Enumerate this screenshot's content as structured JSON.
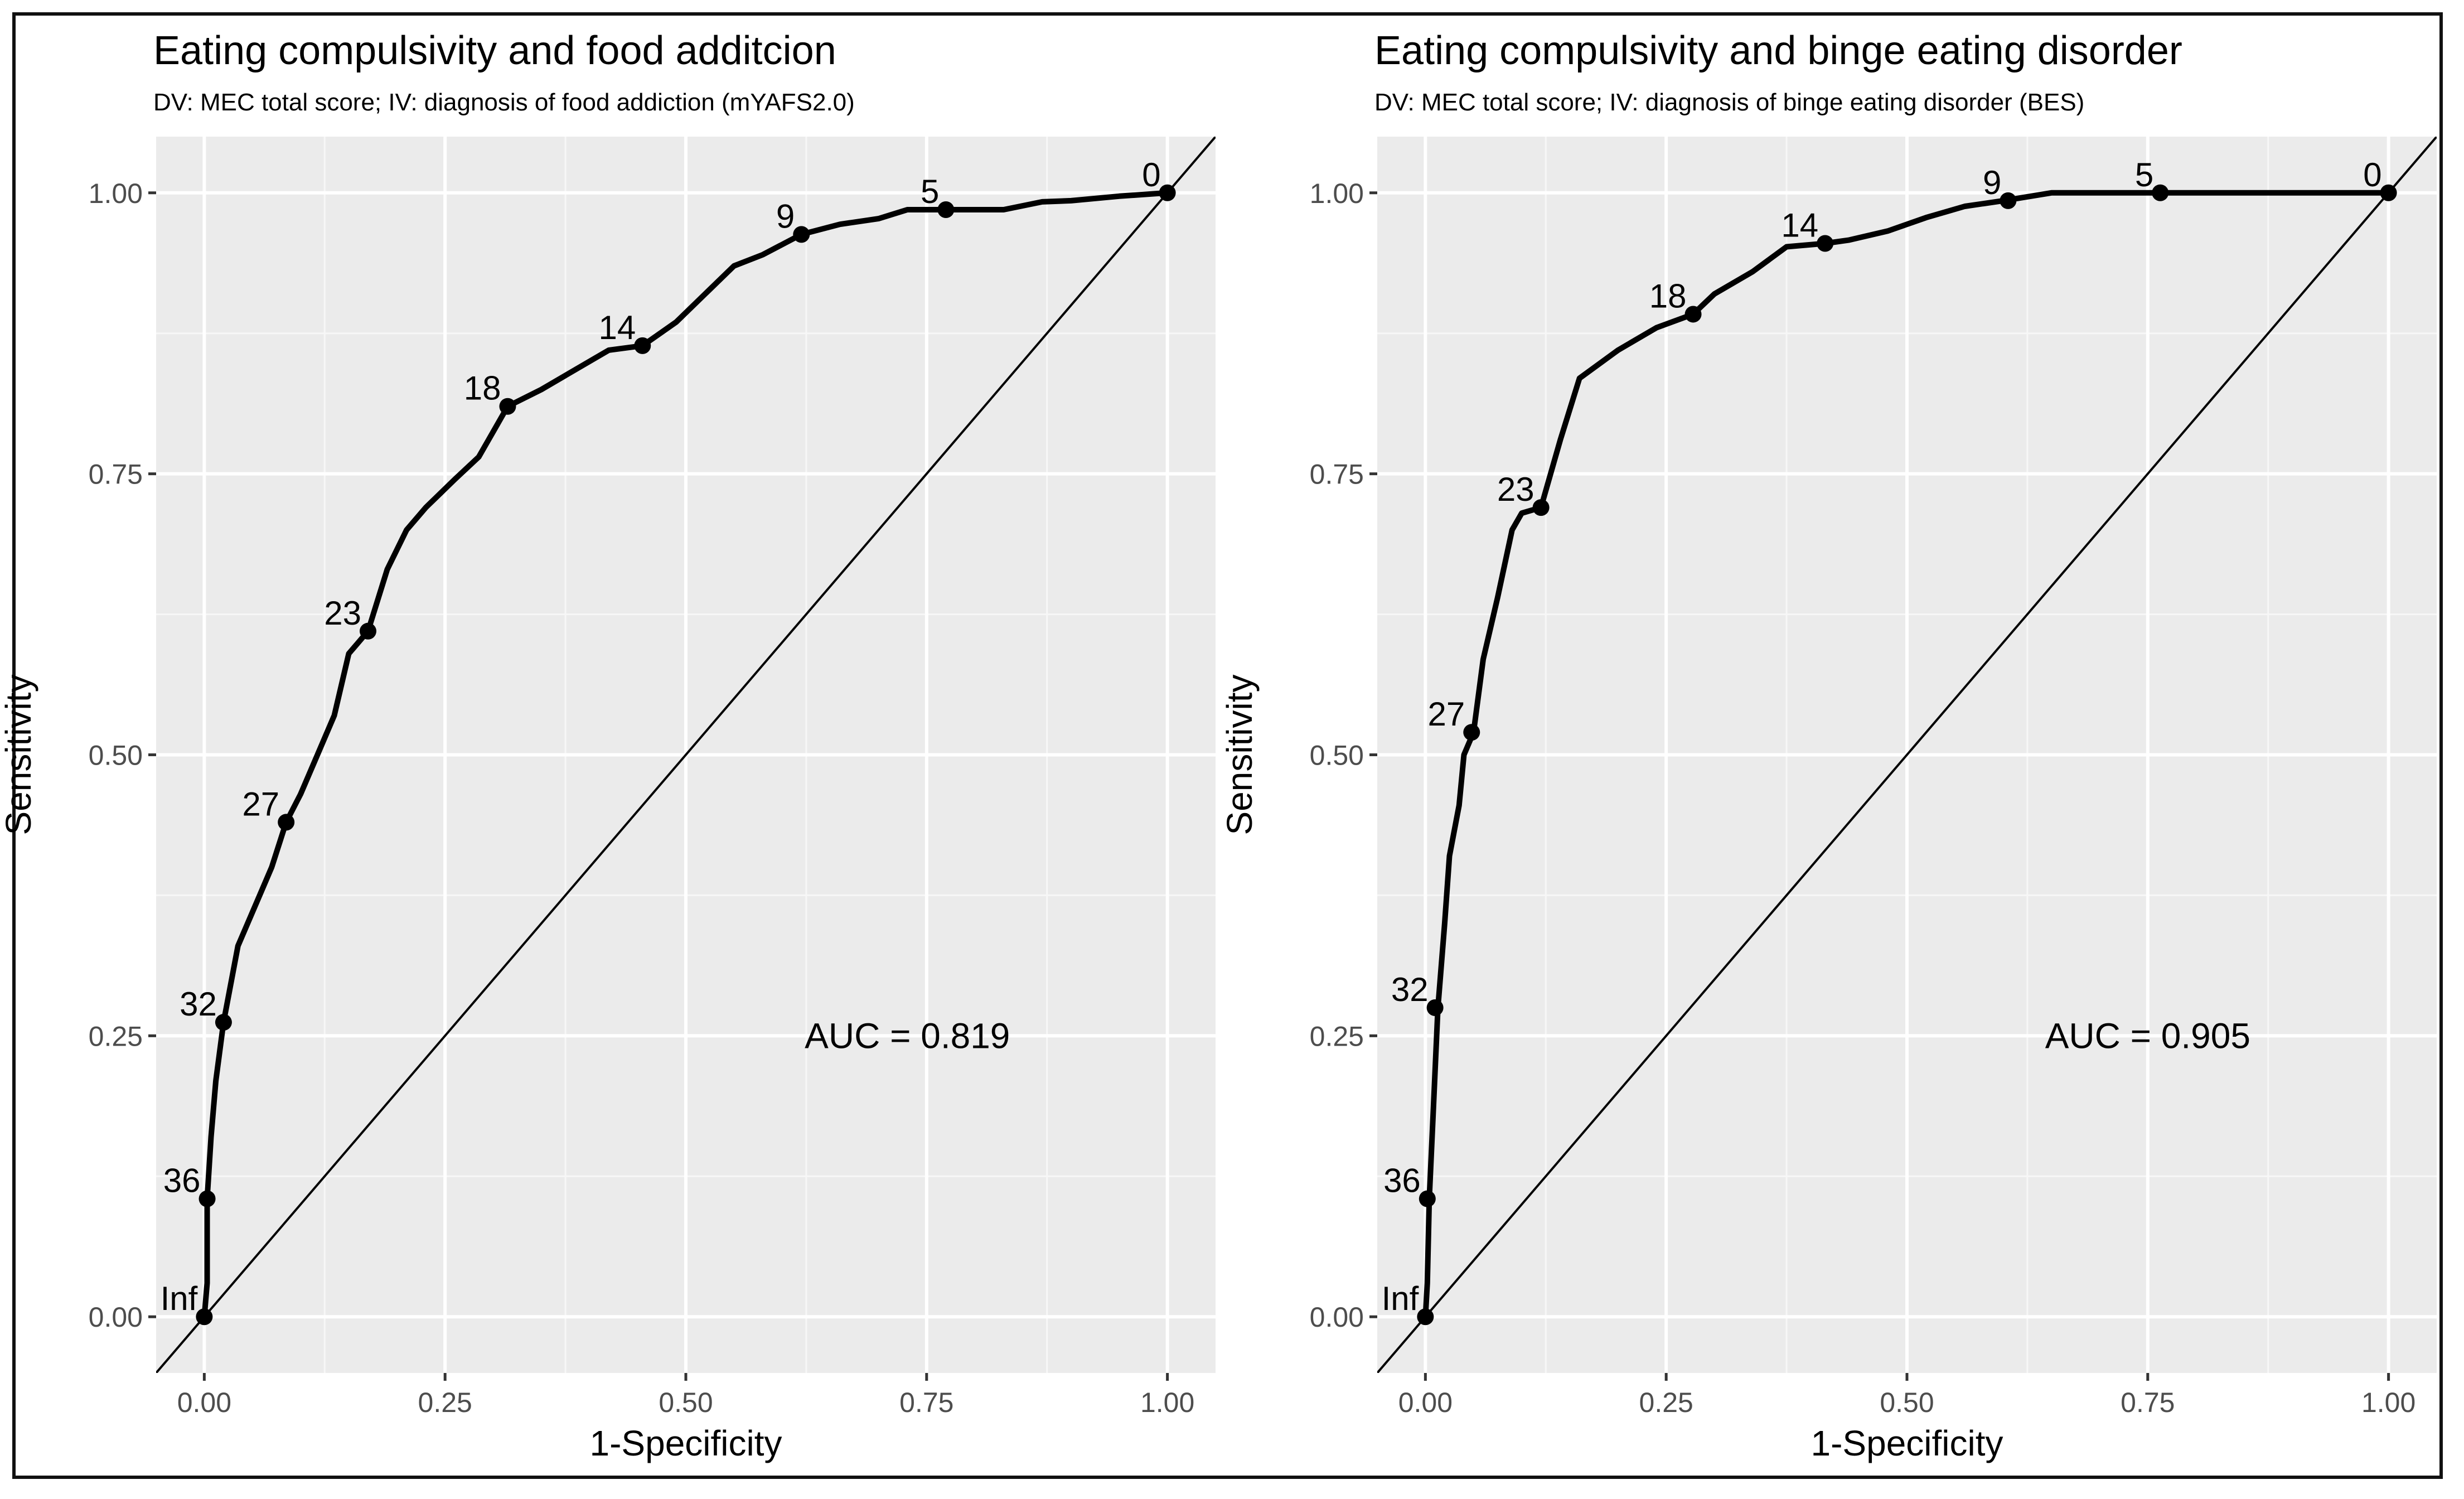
{
  "chart_data": [
    {
      "type": "line",
      "title": "Eating compulsivity and food additcion",
      "subtitle": "DV: MEC total score; IV: diagnosis of food addiction (mYAFS2.0)",
      "xlabel": "1-Specificity",
      "ylabel": "Sensitivity",
      "xlim": [
        -0.05,
        1.05
      ],
      "ylim": [
        -0.05,
        1.05
      ],
      "xticks": [
        0,
        0.25,
        0.5,
        0.75,
        1
      ],
      "xtick_labels": [
        "0.00",
        "0.25",
        "0.50",
        "0.75",
        "1.00"
      ],
      "yticks": [
        0,
        0.25,
        0.5,
        0.75,
        1
      ],
      "ytick_labels": [
        "0.00",
        "0.25",
        "0.50",
        "0.75",
        "1.00"
      ],
      "grid": true,
      "diagonal": true,
      "auc_text": "AUC = 0.819",
      "auc_position": [
        0.73,
        0.25
      ],
      "curve": {
        "x": [
          0,
          0.003,
          0.003,
          0.007,
          0.012,
          0.02,
          0.035,
          0.055,
          0.07,
          0.085,
          0.1,
          0.115,
          0.135,
          0.15,
          0.17,
          0.19,
          0.21,
          0.23,
          0.26,
          0.285,
          0.295,
          0.315,
          0.35,
          0.38,
          0.42,
          0.455,
          0.49,
          0.52,
          0.55,
          0.58,
          0.62,
          0.66,
          0.7,
          0.73,
          0.77,
          0.83,
          0.87,
          0.9,
          0.95,
          1.0
        ],
        "y": [
          0,
          0.03,
          0.105,
          0.16,
          0.21,
          0.262,
          0.33,
          0.37,
          0.4,
          0.44,
          0.465,
          0.495,
          0.535,
          0.59,
          0.61,
          0.665,
          0.7,
          0.72,
          0.745,
          0.765,
          0.78,
          0.81,
          0.825,
          0.84,
          0.86,
          0.864,
          0.885,
          0.91,
          0.935,
          0.945,
          0.963,
          0.972,
          0.977,
          0.985,
          0.985,
          0.985,
          0.992,
          0.993,
          0.997,
          1.0
        ]
      },
      "points": [
        {
          "label": "Inf",
          "x": 0,
          "y": 0
        },
        {
          "label": "36",
          "x": 0.003,
          "y": 0.105
        },
        {
          "label": "32",
          "x": 0.02,
          "y": 0.262
        },
        {
          "label": "27",
          "x": 0.085,
          "y": 0.44
        },
        {
          "label": "23",
          "x": 0.17,
          "y": 0.61
        },
        {
          "label": "18",
          "x": 0.315,
          "y": 0.81
        },
        {
          "label": "14",
          "x": 0.455,
          "y": 0.864
        },
        {
          "label": "9",
          "x": 0.62,
          "y": 0.963
        },
        {
          "label": "5",
          "x": 0.77,
          "y": 0.985
        },
        {
          "label": "0",
          "x": 1.0,
          "y": 1.0
        }
      ]
    },
    {
      "type": "line",
      "title": "Eating compulsivity and binge eating disorder",
      "subtitle": "DV: MEC total score; IV: diagnosis of binge eating disorder (BES)",
      "xlabel": "1-Specificity",
      "ylabel": "Sensitivity",
      "xlim": [
        -0.05,
        1.05
      ],
      "ylim": [
        -0.05,
        1.05
      ],
      "xticks": [
        0,
        0.25,
        0.5,
        0.75,
        1
      ],
      "xtick_labels": [
        "0.00",
        "0.25",
        "0.50",
        "0.75",
        "1.00"
      ],
      "yticks": [
        0,
        0.25,
        0.5,
        0.75,
        1
      ],
      "ytick_labels": [
        "0.00",
        "0.25",
        "0.50",
        "0.75",
        "1.00"
      ],
      "grid": true,
      "diagonal": true,
      "auc_text": "AUC = 0.905",
      "auc_position": [
        0.75,
        0.25
      ],
      "curve": {
        "x": [
          0,
          0.002,
          0.004,
          0.008,
          0.013,
          0.02,
          0.025,
          0.035,
          0.04,
          0.05,
          0.06,
          0.075,
          0.09,
          0.1,
          0.12,
          0.14,
          0.16,
          0.2,
          0.24,
          0.278,
          0.3,
          0.34,
          0.375,
          0.415,
          0.44,
          0.48,
          0.52,
          0.56,
          0.6,
          0.65,
          0.7,
          0.763,
          0.85,
          1.0
        ],
        "y": [
          0,
          0.03,
          0.105,
          0.18,
          0.275,
          0.35,
          0.41,
          0.455,
          0.5,
          0.52,
          0.585,
          0.64,
          0.7,
          0.715,
          0.72,
          0.78,
          0.835,
          0.86,
          0.88,
          0.892,
          0.91,
          0.93,
          0.952,
          0.955,
          0.958,
          0.966,
          0.978,
          0.988,
          0.993,
          1.0,
          1.0,
          1.0,
          1.0,
          1.0
        ]
      },
      "points": [
        {
          "label": "Inf",
          "x": 0,
          "y": 0
        },
        {
          "label": "36",
          "x": 0.002,
          "y": 0.105
        },
        {
          "label": "32",
          "x": 0.01,
          "y": 0.275
        },
        {
          "label": "27",
          "x": 0.048,
          "y": 0.52
        },
        {
          "label": "23",
          "x": 0.12,
          "y": 0.72
        },
        {
          "label": "18",
          "x": 0.278,
          "y": 0.892
        },
        {
          "label": "14",
          "x": 0.415,
          "y": 0.955
        },
        {
          "label": "9",
          "x": 0.605,
          "y": 0.993
        },
        {
          "label": "5",
          "x": 0.763,
          "y": 1.0
        },
        {
          "label": "0",
          "x": 1.0,
          "y": 1.0
        }
      ]
    }
  ]
}
